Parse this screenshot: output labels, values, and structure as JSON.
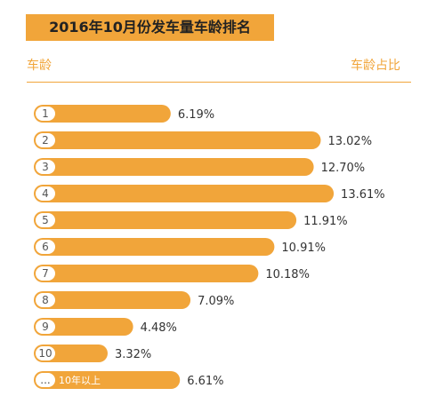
{
  "chart_data": {
    "type": "bar",
    "orientation": "horizontal",
    "title": "2016年10月份发车量车龄排名",
    "category_header": "车龄",
    "value_header": "车龄占比",
    "categories": [
      "1",
      "2",
      "3",
      "4",
      "5",
      "6",
      "7",
      "8",
      "9",
      "10",
      "...10年以上"
    ],
    "values": [
      6.19,
      13.02,
      12.7,
      13.61,
      11.91,
      10.91,
      10.18,
      7.09,
      4.48,
      3.32,
      6.61
    ],
    "value_labels": [
      "6.19%",
      "13.02%",
      "12.70%",
      "13.61%",
      "11.91%",
      "10.91%",
      "10.18%",
      "7.09%",
      "4.48%",
      "3.32%",
      "6.61%"
    ],
    "xlim": [
      0,
      14
    ],
    "bar_color": "#f1a53a",
    "grid": false,
    "legend": "none"
  },
  "colors": {
    "accent": "#f1a53a",
    "text": "#333333"
  }
}
